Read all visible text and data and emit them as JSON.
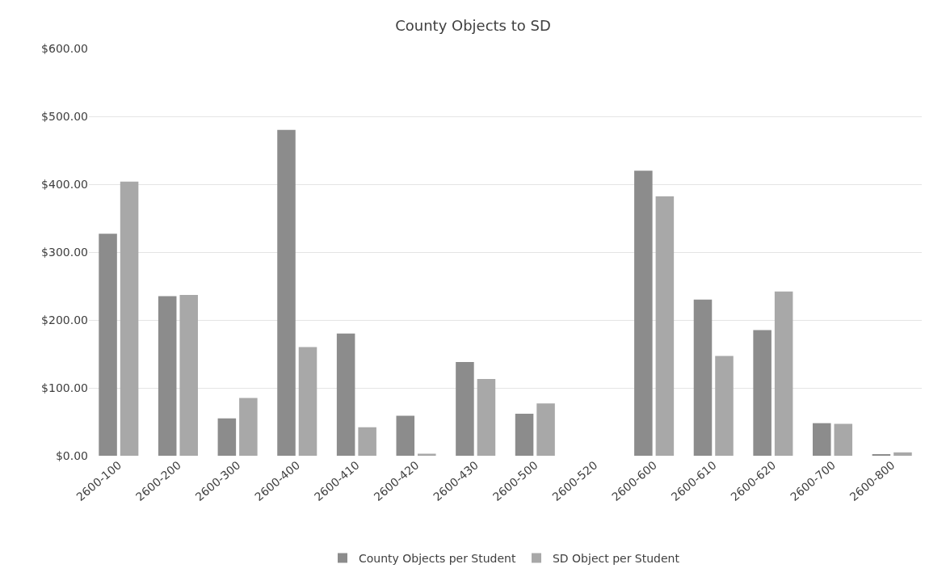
{
  "chart_data": {
    "type": "bar",
    "title": "County Objects to SD",
    "categories": [
      "2600-100",
      "2600-200",
      "2600-300",
      "2600-400",
      "2600-410",
      "2600-420",
      "2600-430",
      "2600-500",
      "2600-520",
      "2600-600",
      "2600-610",
      "2600-620",
      "2600-700",
      "2600-800"
    ],
    "series": [
      {
        "name": "County Objects per Student",
        "color": "#8c8c8c",
        "values": [
          327,
          235,
          55,
          480,
          180,
          59,
          138,
          62,
          0,
          420,
          230,
          185,
          48,
          2
        ]
      },
      {
        "name": "SD Object per Student",
        "color": "#a8a8a8",
        "values": [
          404,
          237,
          85,
          160,
          42,
          3,
          113,
          77,
          0,
          382,
          147,
          242,
          47,
          5
        ]
      }
    ],
    "ylim": [
      0,
      600
    ],
    "yticks": [
      {
        "value": 0,
        "label": "$0.00"
      },
      {
        "value": 100,
        "label": "$100.00"
      },
      {
        "value": 200,
        "label": "$200.00"
      },
      {
        "value": 300,
        "label": "$300.00"
      },
      {
        "value": 400,
        "label": "$400.00"
      },
      {
        "value": 500,
        "label": "$500.00"
      },
      {
        "value": 600,
        "label": "$600.00"
      }
    ],
    "grid": "y",
    "legend": "bottom"
  }
}
